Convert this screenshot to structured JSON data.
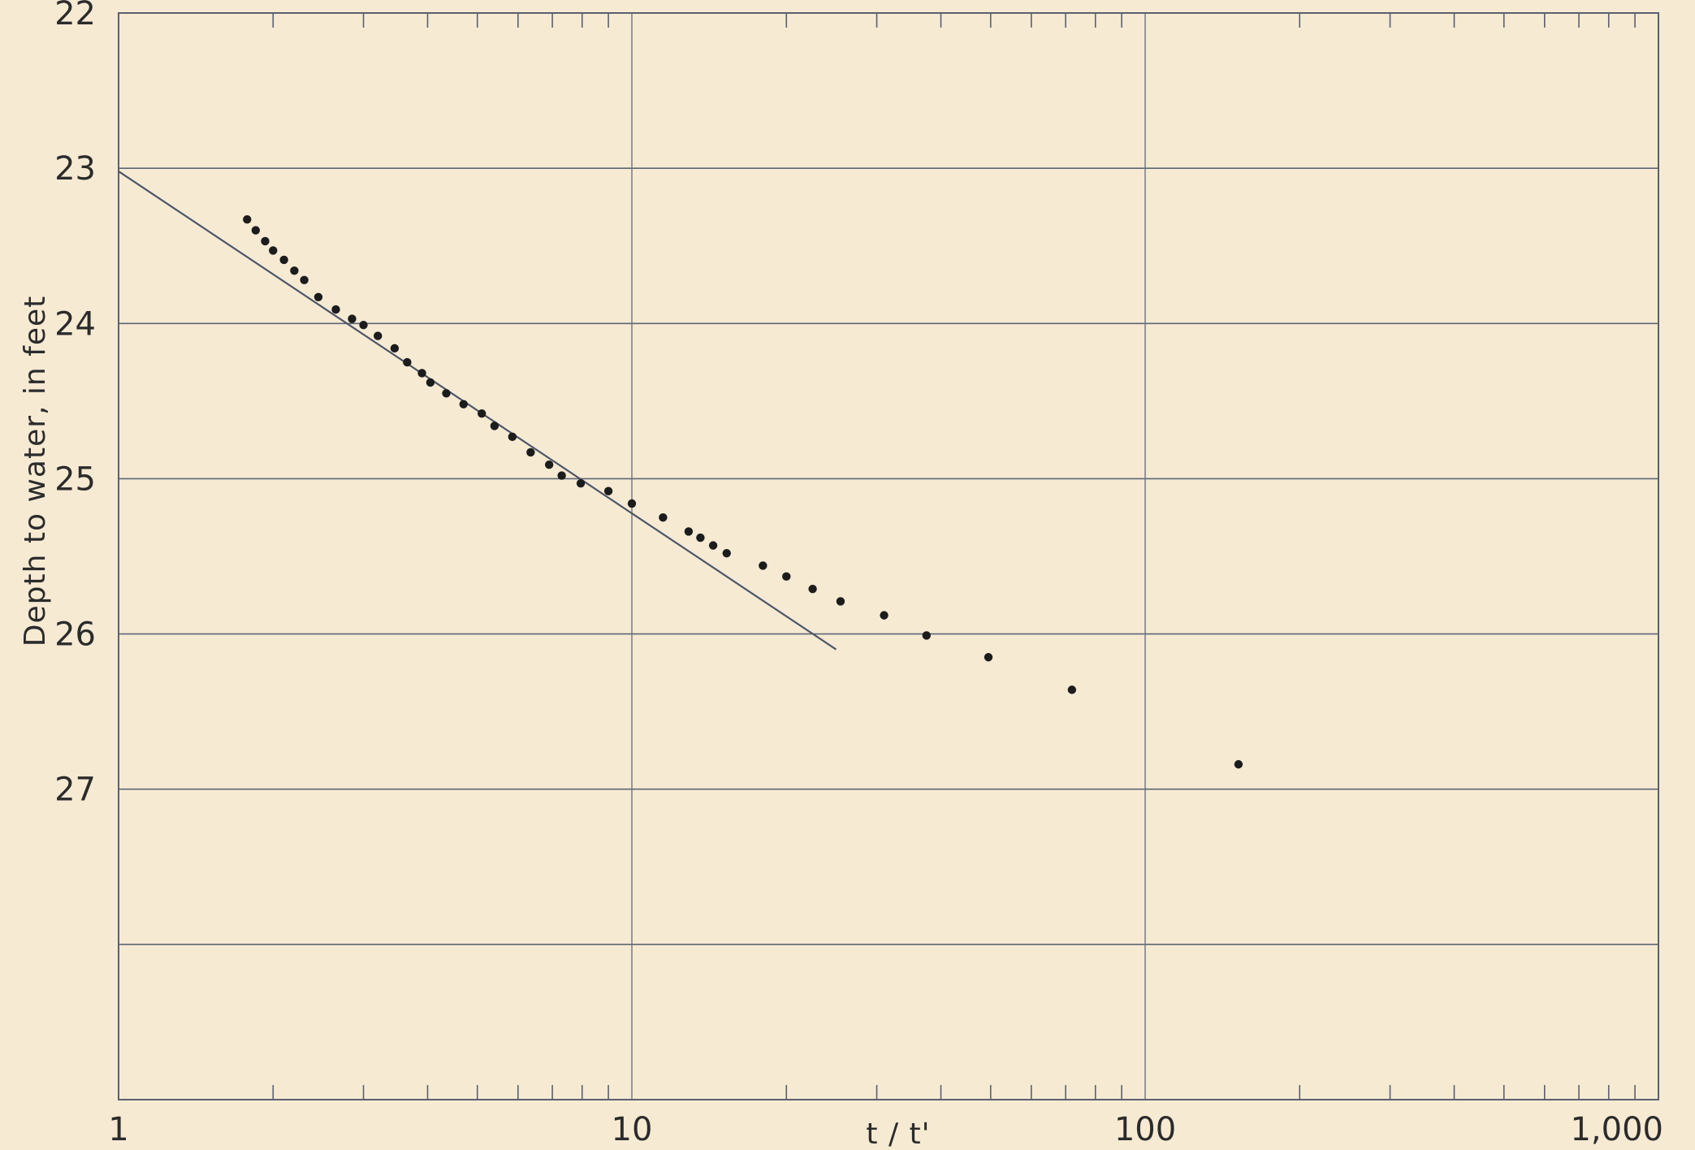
{
  "chart_data": {
    "type": "scatter",
    "title": "",
    "xlabel": "t / t'",
    "ylabel": "Depth to water, in feet",
    "x_scale": "log",
    "xlim": [
      1,
      1000
    ],
    "ylim": [
      22,
      29
    ],
    "y_inverted": true,
    "x_ticks": [
      {
        "value": 1,
        "label": "1"
      },
      {
        "value": 10,
        "label": "10"
      },
      {
        "value": 100,
        "label": "100"
      },
      {
        "value": 1000,
        "label": "1,000"
      }
    ],
    "y_ticks": [
      {
        "value": 22,
        "label": "22"
      },
      {
        "value": 23,
        "label": "23"
      },
      {
        "value": 24,
        "label": "24"
      },
      {
        "value": 25,
        "label": "25"
      },
      {
        "value": 26,
        "label": "26"
      },
      {
        "value": 27,
        "label": "27"
      }
    ],
    "gridlines_y": [
      23,
      24,
      25,
      26,
      27,
      28
    ],
    "gridlines_x": [
      10,
      100
    ],
    "grid": true,
    "series": [
      {
        "points": [
          {
            "x": 1.78,
            "y": 23.33
          },
          {
            "x": 1.85,
            "y": 23.4
          },
          {
            "x": 1.93,
            "y": 23.47
          },
          {
            "x": 2.0,
            "y": 23.53
          },
          {
            "x": 2.1,
            "y": 23.59
          },
          {
            "x": 2.2,
            "y": 23.66
          },
          {
            "x": 2.3,
            "y": 23.72
          },
          {
            "x": 2.45,
            "y": 23.83
          },
          {
            "x": 2.65,
            "y": 23.91
          },
          {
            "x": 2.85,
            "y": 23.97
          },
          {
            "x": 3.0,
            "y": 24.01
          },
          {
            "x": 3.2,
            "y": 24.08
          },
          {
            "x": 3.45,
            "y": 24.16
          },
          {
            "x": 3.65,
            "y": 24.25
          },
          {
            "x": 3.9,
            "y": 24.32
          },
          {
            "x": 4.05,
            "y": 24.38
          },
          {
            "x": 4.35,
            "y": 24.45
          },
          {
            "x": 4.7,
            "y": 24.52
          },
          {
            "x": 5.1,
            "y": 24.58
          },
          {
            "x": 5.4,
            "y": 24.66
          },
          {
            "x": 5.85,
            "y": 24.73
          },
          {
            "x": 6.35,
            "y": 24.83
          },
          {
            "x": 6.9,
            "y": 24.91
          },
          {
            "x": 7.3,
            "y": 24.98
          },
          {
            "x": 7.95,
            "y": 25.03
          },
          {
            "x": 9.0,
            "y": 25.08
          },
          {
            "x": 10.0,
            "y": 25.16
          },
          {
            "x": 11.5,
            "y": 25.25
          },
          {
            "x": 12.9,
            "y": 25.34
          },
          {
            "x": 13.6,
            "y": 25.38
          },
          {
            "x": 14.4,
            "y": 25.43
          },
          {
            "x": 15.3,
            "y": 25.48
          },
          {
            "x": 18.0,
            "y": 25.56
          },
          {
            "x": 20.0,
            "y": 25.63
          },
          {
            "x": 22.5,
            "y": 25.71
          },
          {
            "x": 25.5,
            "y": 25.79
          },
          {
            "x": 31.0,
            "y": 25.88
          },
          {
            "x": 37.5,
            "y": 26.01
          },
          {
            "x": 49.5,
            "y": 26.15
          },
          {
            "x": 72.0,
            "y": 26.36
          },
          {
            "x": 152.0,
            "y": 26.84
          }
        ]
      }
    ],
    "lines": [
      {
        "from": {
          "x": 1.0,
          "y": 23.02
        },
        "to": {
          "x": 25.0,
          "y": 26.1
        }
      }
    ]
  }
}
